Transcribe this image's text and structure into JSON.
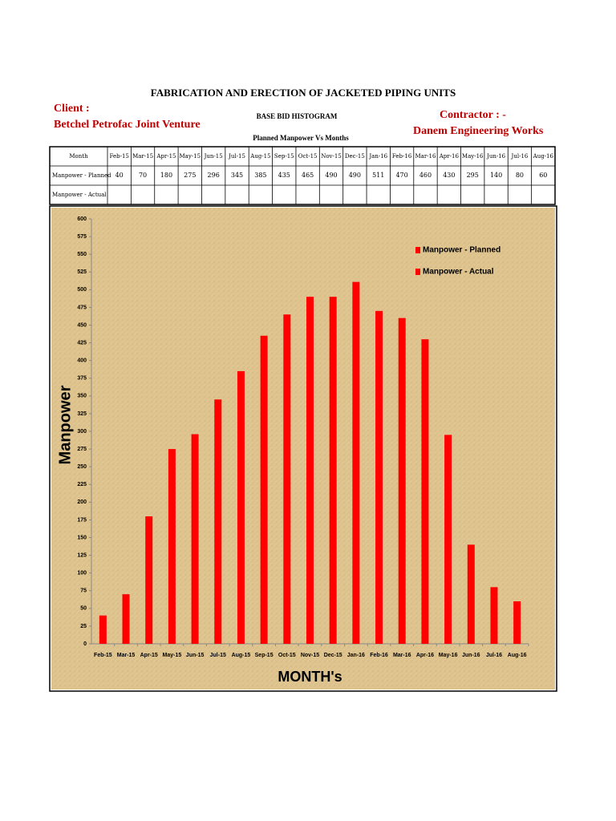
{
  "header": {
    "title": "FABRICATION AND ERECTION OF JACKETED PIPING UNITS",
    "client_label": "Client :",
    "client_name": "Betchel Petrofac Joint Venture",
    "subtitle": "BASE  BID HISTOGRAM",
    "caption": "Planned Manpower Vs Months",
    "contractor_label": "Contractor  : -",
    "contractor_name": "Danem Engineering Works"
  },
  "table": {
    "row_labels": [
      "Month",
      "Manpower - Planned",
      "Manpower - Actual"
    ]
  },
  "chart_data": {
    "type": "bar",
    "xlabel": "MONTH's",
    "ylabel": "Manpower",
    "categories": [
      "Feb-15",
      "Mar-15",
      "Apr-15",
      "May-15",
      "Jun-15",
      "Jul-15",
      "Aug-15",
      "Sep-15",
      "Oct-15",
      "Nov-15",
      "Dec-15",
      "Jan-16",
      "Feb-16",
      "Mar-16",
      "Apr-16",
      "May-16",
      "Jun-16",
      "Jul-16",
      "Aug-16"
    ],
    "series": [
      {
        "name": "Manpower - Planned",
        "color": "#ff0000",
        "values": [
          40,
          70,
          180,
          275,
          296,
          345,
          385,
          435,
          465,
          490,
          490,
          511,
          470,
          460,
          430,
          295,
          140,
          80,
          60
        ]
      },
      {
        "name": "Manpower - Actual",
        "color": "#ff0000",
        "values": [
          null,
          null,
          null,
          null,
          null,
          null,
          null,
          null,
          null,
          null,
          null,
          null,
          null,
          null,
          null,
          null,
          null,
          null,
          null
        ]
      }
    ],
    "ylim": [
      0,
      600
    ],
    "yticks": [
      0,
      25,
      50,
      75,
      100,
      125,
      150,
      175,
      200,
      225,
      250,
      275,
      300,
      325,
      350,
      375,
      400,
      425,
      450,
      475,
      500,
      525,
      550,
      575,
      600
    ],
    "grid": false,
    "legend": "top-right"
  }
}
